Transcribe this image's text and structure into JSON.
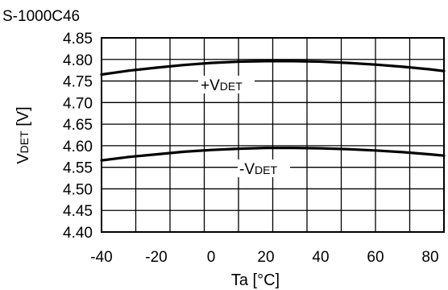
{
  "chart_data": {
    "type": "line",
    "title": "S-1000C46",
    "xlabel": "Ta [°C]",
    "ylabel_main": "V",
    "ylabel_sub": "DET",
    "ylabel_unit": " [V]",
    "xlim": [
      -40,
      85
    ],
    "ylim": [
      4.4,
      4.85
    ],
    "xticks": [
      -40,
      -20,
      0,
      20,
      40,
      60,
      80
    ],
    "yticks": [
      "4.40",
      "4.45",
      "4.50",
      "4.55",
      "4.60",
      "4.65",
      "4.70",
      "4.75",
      "4.80",
      "4.85"
    ],
    "grid": true,
    "series": [
      {
        "name_main": "+V",
        "name_sub": "DET",
        "x": [
          -40,
          -30,
          -20,
          -10,
          0,
          10,
          20,
          30,
          40,
          50,
          60,
          70,
          80,
          85
        ],
        "y": [
          4.765,
          4.774,
          4.781,
          4.787,
          4.792,
          4.795,
          4.796,
          4.796,
          4.795,
          4.792,
          4.788,
          4.783,
          4.777,
          4.773
        ]
      },
      {
        "name_main": "-V",
        "name_sub": "DET",
        "x": [
          -40,
          -30,
          -20,
          -10,
          0,
          10,
          20,
          30,
          40,
          50,
          60,
          70,
          80,
          85
        ],
        "y": [
          4.566,
          4.574,
          4.58,
          4.586,
          4.59,
          4.593,
          4.595,
          4.595,
          4.594,
          4.592,
          4.589,
          4.585,
          4.58,
          4.577
        ]
      }
    ]
  }
}
